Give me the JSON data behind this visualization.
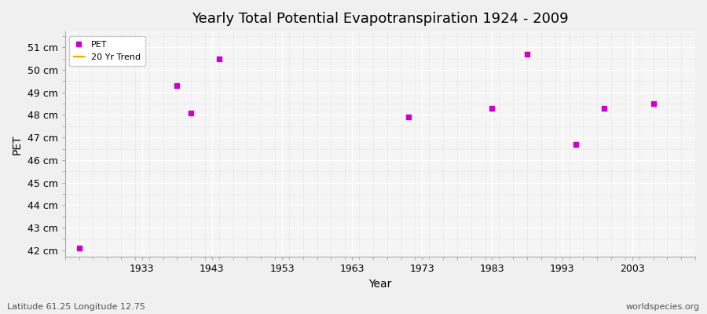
{
  "title": "Yearly Total Potential Evapotranspiration 1924 - 2009",
  "xlabel": "Year",
  "ylabel": "PET",
  "fig_bg_color": "#f0f0f0",
  "plot_bg_color": "#f5f5f5",
  "pet_color": "#cc00cc",
  "trend_color": "#ffa500",
  "pet_years": [
    1924,
    1938,
    1940,
    1944,
    1971,
    1983,
    1988,
    1995,
    1999,
    2006
  ],
  "pet_values": [
    42.1,
    49.3,
    48.1,
    50.5,
    47.9,
    48.3,
    50.7,
    46.7,
    48.3,
    48.5
  ],
  "ylim_min": 41.7,
  "ylim_max": 51.7,
  "xlim_min": 1922,
  "xlim_max": 2012,
  "ytick_values": [
    42,
    43,
    44,
    45,
    46,
    47,
    48,
    49,
    50,
    51
  ],
  "xtick_values": [
    1933,
    1943,
    1953,
    1963,
    1973,
    1983,
    1993,
    2003
  ],
  "footer_left": "Latitude 61.25 Longitude 12.75",
  "footer_right": "worldspecies.org",
  "legend_labels": [
    "PET",
    "20 Yr Trend"
  ],
  "marker_size": 18,
  "marker_style": "s",
  "grid_major_color": "#ffffff",
  "grid_minor_color": "#d8d8d8",
  "tick_label_fontsize": 9,
  "title_fontsize": 13,
  "axis_label_fontsize": 10,
  "footer_fontsize": 8
}
